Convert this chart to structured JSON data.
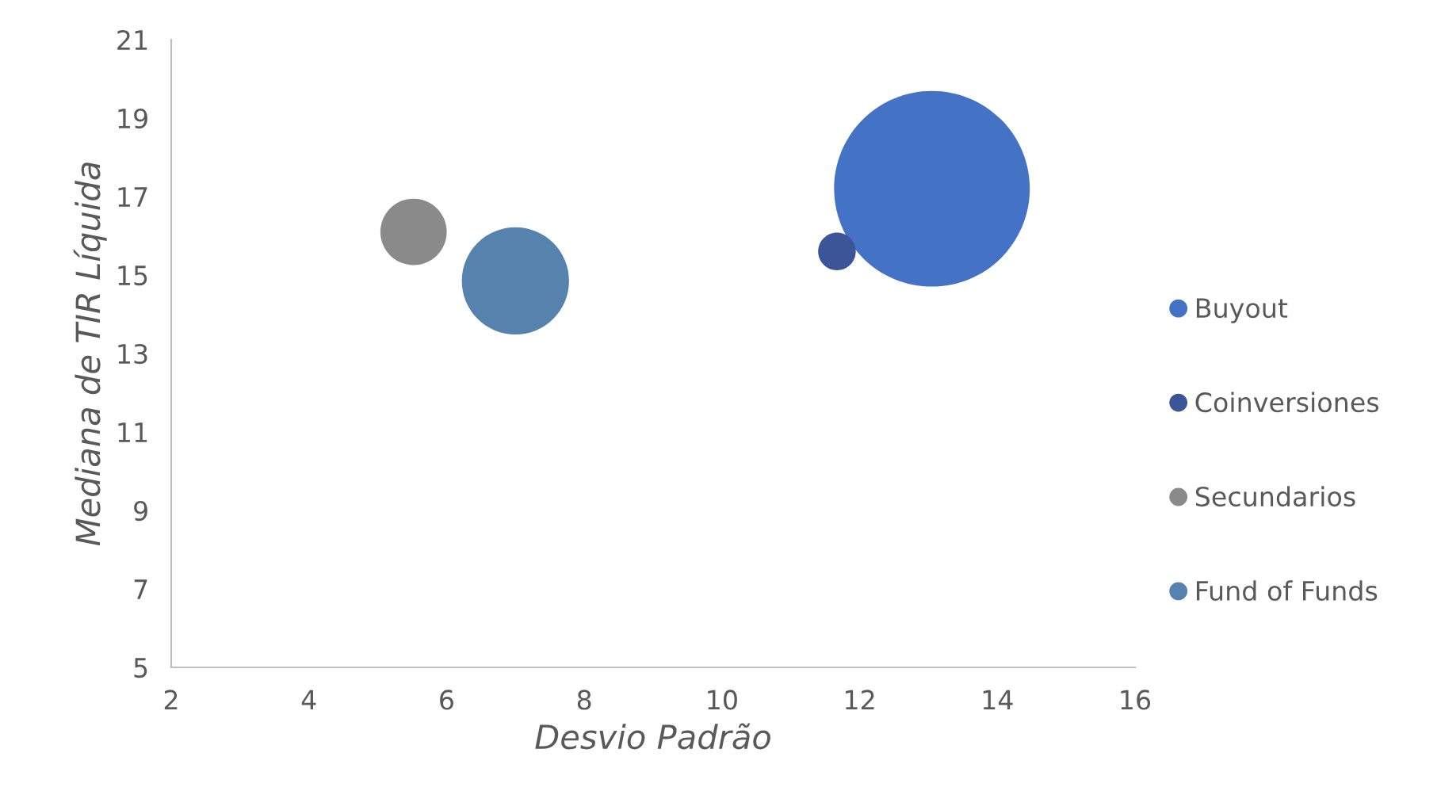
{
  "chart_data": {
    "type": "bubble",
    "xlabel": "Desvio Padrão",
    "ylabel": "Mediana de TIR Líquida",
    "xlim": [
      2,
      16
    ],
    "xticks": [
      2,
      4,
      6,
      8,
      10,
      12,
      14,
      16
    ],
    "ylim": [
      5,
      21
    ],
    "yticks": [
      5,
      7,
      9,
      11,
      13,
      15,
      17,
      19,
      21
    ],
    "grid": false,
    "legend": "right",
    "series": [
      {
        "name": "Buyout",
        "color": "#4472c4",
        "x": [
          13.05
        ],
        "values": [
          17.2
        ],
        "sizes": [
          1
        ]
      },
      {
        "name": "Coinversiones",
        "color": "#3c5597",
        "x": [
          11.67
        ],
        "values": [
          15.6
        ],
        "sizes": [
          0.037
        ]
      },
      {
        "name": "Secundarios",
        "color": "#8a8a8a",
        "x": [
          5.52
        ],
        "values": [
          16.1
        ],
        "sizes": [
          0.115
        ]
      },
      {
        "name": "Fund of Funds",
        "color": "#5683ad",
        "x": [
          7.0
        ],
        "values": [
          14.85
        ],
        "sizes": [
          0.3
        ]
      }
    ]
  }
}
